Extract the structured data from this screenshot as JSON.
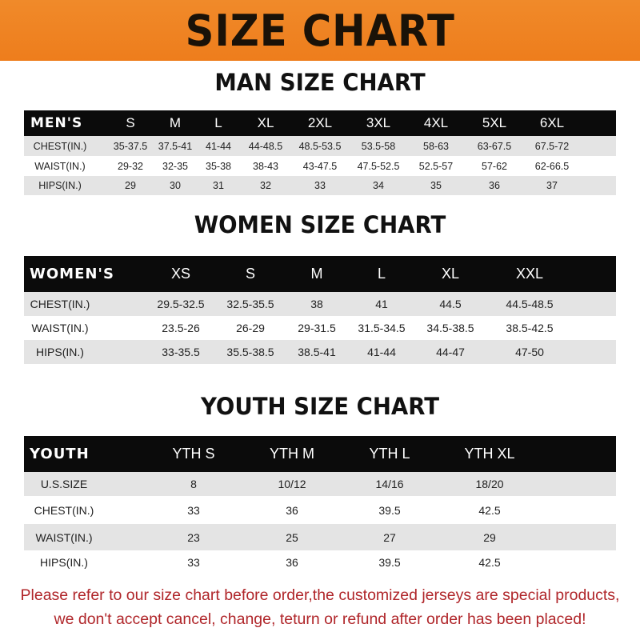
{
  "banner_title": "SIZE CHART",
  "men": {
    "title": "MAN SIZE CHART",
    "header": [
      "MEN'S",
      "S",
      "M",
      "L",
      "XL",
      "2XL",
      "3XL",
      "4XL",
      "5XL",
      "6XL"
    ],
    "rows": [
      [
        "CHEST(IN.)",
        "35-37.5",
        "37.5-41",
        "41-44",
        "44-48.5",
        "48.5-53.5",
        "53.5-58",
        "58-63",
        "63-67.5",
        "67.5-72"
      ],
      [
        "WAIST(IN.)",
        "29-32",
        "32-35",
        "35-38",
        "38-43",
        "43-47.5",
        "47.5-52.5",
        "52.5-57",
        "57-62",
        "62-66.5"
      ],
      [
        "HIPS(IN.)",
        "29",
        "30",
        "31",
        "32",
        "33",
        "34",
        "35",
        "36",
        "37"
      ]
    ]
  },
  "women": {
    "title": "WOMEN SIZE CHART",
    "header": [
      "WOMEN'S",
      "XS",
      "S",
      "M",
      "L",
      "XL",
      "XXL"
    ],
    "rows": [
      [
        "CHEST(IN.)",
        "29.5-32.5",
        "32.5-35.5",
        "38",
        "41",
        "44.5",
        "44.5-48.5"
      ],
      [
        "WAIST(IN.)",
        "23.5-26",
        "26-29",
        "29-31.5",
        "31.5-34.5",
        "34.5-38.5",
        "38.5-42.5"
      ],
      [
        "HIPS(IN.)",
        "33-35.5",
        "35.5-38.5",
        "38.5-41",
        "41-44",
        "44-47",
        "47-50"
      ]
    ]
  },
  "youth": {
    "title": "YOUTH SIZE CHART",
    "header": [
      "YOUTH",
      "YTH S",
      "YTH M",
      "YTH L",
      "YTH XL"
    ],
    "rows": [
      [
        "U.S.SIZE",
        "8",
        "10/12",
        "14/16",
        "18/20"
      ],
      [
        "CHEST(IN.)",
        "33",
        "36",
        "39.5",
        "42.5"
      ],
      [
        "WAIST(IN.)",
        "23",
        "25",
        "27",
        "29"
      ],
      [
        "HIPS(IN.)",
        "33",
        "36",
        "39.5",
        "42.5"
      ]
    ]
  },
  "footer": {
    "line1": "Please refer to our size chart before order,the customized jerseys are special products,",
    "line2": "we don't accept cancel, change, teturn or refund after order has been placed!"
  },
  "colors": {
    "banner": "#ee7d1c",
    "header_row": "#0b0b0b",
    "stripe": "#e4e4e4",
    "footer_text": "#b0262a"
  }
}
